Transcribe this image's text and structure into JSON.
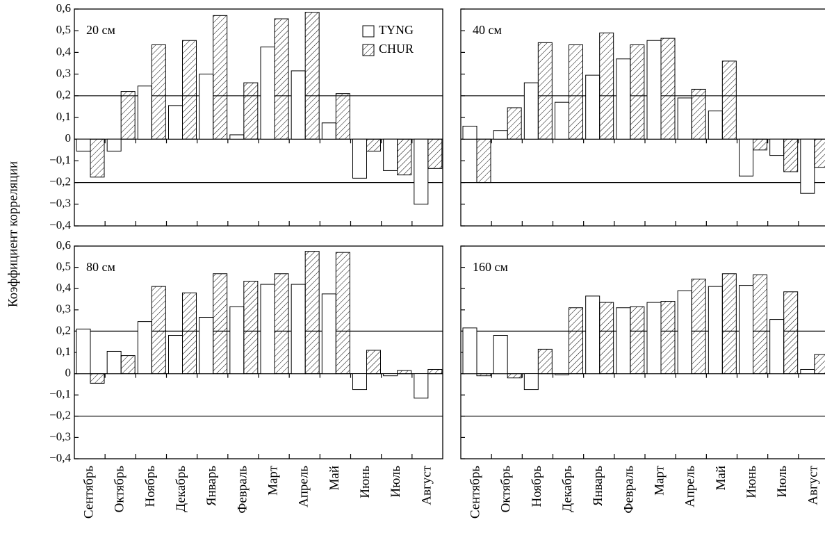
{
  "chart_data": [
    {
      "type": "bar",
      "label": "20 см",
      "ylabel": "Коэффициент корреляции",
      "ylim": [
        -0.4,
        0.6
      ],
      "yticks": [
        {
          "value": -0.4,
          "label": "−0,4"
        },
        {
          "value": -0.3,
          "label": "−0,3"
        },
        {
          "value": -0.2,
          "label": "−0,2"
        },
        {
          "value": -0.1,
          "label": "−0,1"
        },
        0,
        {
          "value": 0.1,
          "label": "0,1"
        },
        {
          "value": 0.2,
          "label": "0,2"
        },
        {
          "value": 0.3,
          "label": "0,3"
        },
        {
          "value": 0.4,
          "label": "0,4"
        },
        {
          "value": 0.5,
          "label": "0,5"
        },
        {
          "value": 0.6,
          "label": "0,6"
        }
      ],
      "hlines": [
        0.2,
        -0.2
      ],
      "series": [
        {
          "name": "TYNG",
          "color": "#ffffff",
          "hatched": false,
          "values": [
            -0.055,
            -0.055,
            0.245,
            0.155,
            0.3,
            0.02,
            0.425,
            0.315,
            0.075,
            -0.18,
            -0.145,
            -0.3
          ]
        },
        {
          "name": "CHUR",
          "color": "#000000",
          "hatched": true,
          "values": [
            -0.175,
            0.22,
            0.435,
            0.455,
            0.57,
            0.26,
            0.555,
            0.585,
            0.21,
            -0.055,
            -0.165,
            -0.135
          ]
        }
      ]
    },
    {
      "type": "bar",
      "label": "40 см",
      "ylim": [
        -0.4,
        0.6
      ],
      "yticks": [
        -0.4,
        -0.3,
        -0.2,
        -0.1,
        0,
        0.1,
        0.2,
        0.3,
        0.4,
        0.5,
        0.6
      ],
      "hlines": [
        0.2,
        -0.2
      ],
      "series": [
        {
          "color": "#ffffff",
          "hatched": false,
          "values": [
            0.06,
            0.04,
            0.26,
            0.17,
            0.295,
            0.37,
            0.455,
            0.19,
            0.13,
            -0.17,
            -0.075,
            -0.25
          ]
        },
        {
          "color": "#000000",
          "hatched": true,
          "values": [
            -0.2,
            0.145,
            0.445,
            0.435,
            0.49,
            0.435,
            0.465,
            0.23,
            0.36,
            -0.05,
            -0.15,
            -0.13
          ]
        }
      ]
    },
    {
      "type": "bar",
      "label": "80 см",
      "categories": [
        "Сентябрь",
        "Октябрь",
        "Ноябрь",
        "Декабрь",
        "Январь",
        "Февраль",
        "Март",
        "Апрель",
        "Май",
        "Июнь",
        "Июль",
        "Август"
      ],
      "ylim": [
        -0.4,
        0.6
      ],
      "yticks": [
        {
          "value": -0.4,
          "label": "−0,4"
        },
        {
          "value": -0.3,
          "label": "−0,3"
        },
        {
          "value": -0.2,
          "label": "−0,2"
        },
        {
          "value": -0.1,
          "label": "−0,1"
        },
        0,
        {
          "value": 0.1,
          "label": "0,1"
        },
        {
          "value": 0.2,
          "label": "0,2"
        },
        {
          "value": 0.3,
          "label": "0,3"
        },
        {
          "value": 0.4,
          "label": "0,4"
        },
        {
          "value": 0.5,
          "label": "0,5"
        },
        {
          "value": 0.6,
          "label": "0,6"
        }
      ],
      "hlines": [
        0.2,
        -0.2
      ],
      "series": [
        {
          "color": "#ffffff",
          "hatched": false,
          "values": [
            0.21,
            0.105,
            0.245,
            0.18,
            0.265,
            0.315,
            0.42,
            0.42,
            0.375,
            -0.075,
            -0.01,
            -0.115
          ]
        },
        {
          "color": "#000000",
          "hatched": true,
          "values": [
            -0.045,
            0.085,
            0.41,
            0.38,
            0.47,
            0.435,
            0.47,
            0.575,
            0.57,
            0.11,
            0.015,
            0.02
          ]
        }
      ]
    },
    {
      "type": "bar",
      "label": "160 см",
      "categories": [
        "Сентябрь",
        "Октябрь",
        "Ноябрь",
        "Декабрь",
        "Январь",
        "Февраль",
        "Март",
        "Апрель",
        "Май",
        "Июнь",
        "Июль",
        "Август"
      ],
      "ylim": [
        -0.4,
        0.6
      ],
      "yticks": [
        -0.4,
        -0.3,
        -0.2,
        -0.1,
        0,
        0.1,
        0.2,
        0.3,
        0.4,
        0.5,
        0.6
      ],
      "hlines": [
        0.2,
        -0.2
      ],
      "series": [
        {
          "color": "#ffffff",
          "hatched": false,
          "values": [
            0.215,
            0.18,
            -0.075,
            -0.005,
            0.365,
            0.31,
            0.335,
            0.39,
            0.41,
            0.415,
            0.255,
            0.02
          ]
        },
        {
          "color": "#000000",
          "hatched": true,
          "values": [
            -0.01,
            -0.02,
            0.115,
            0.31,
            0.335,
            0.315,
            0.34,
            0.445,
            0.47,
            0.465,
            0.385,
            0.09
          ]
        }
      ]
    }
  ]
}
